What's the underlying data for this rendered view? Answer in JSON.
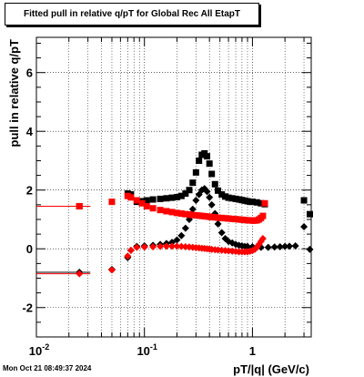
{
  "chart_data": {
    "type": "scatter",
    "title": "Fitted pull in relative q/pT for Global Rec All EtapT",
    "xlabel": "pT/|q| (GeV/c)",
    "ylabel": "pull in relative q/pT",
    "xscale": "log",
    "xlim": [
      0.01,
      3.5
    ],
    "ylim": [
      -3.0,
      7.2
    ],
    "x_ticks": [
      {
        "value": 0.01,
        "base": "10",
        "exp": "-2"
      },
      {
        "value": 0.1,
        "base": "10",
        "exp": "-1"
      },
      {
        "value": 1,
        "base": "1",
        "exp": ""
      }
    ],
    "y_ticks": [
      -2,
      0,
      2,
      4,
      6
    ],
    "grid": true,
    "series": [
      {
        "color": "#000000",
        "marker": "square",
        "points": [
          [
            0.025,
            1.45
          ],
          [
            0.07,
            1.88
          ],
          [
            0.075,
            1.85
          ],
          [
            0.085,
            1.6
          ],
          [
            0.095,
            1.62
          ],
          [
            0.105,
            1.65
          ],
          [
            0.12,
            1.68
          ],
          [
            0.14,
            1.7
          ],
          [
            0.16,
            1.72
          ],
          [
            0.18,
            1.74
          ],
          [
            0.2,
            1.76
          ],
          [
            0.22,
            1.8
          ],
          [
            0.24,
            1.88
          ],
          [
            0.26,
            2.0
          ],
          [
            0.28,
            2.25
          ],
          [
            0.3,
            2.6
          ],
          [
            0.32,
            3.0
          ],
          [
            0.34,
            3.2
          ],
          [
            0.36,
            3.25
          ],
          [
            0.38,
            3.15
          ],
          [
            0.4,
            2.9
          ],
          [
            0.42,
            2.55
          ],
          [
            0.45,
            2.2
          ],
          [
            0.48,
            1.98
          ],
          [
            0.52,
            1.85
          ],
          [
            0.56,
            1.78
          ],
          [
            0.6,
            1.74
          ],
          [
            0.65,
            1.72
          ],
          [
            0.7,
            1.7
          ],
          [
            0.75,
            1.68
          ],
          [
            0.8,
            1.66
          ],
          [
            0.85,
            1.64
          ],
          [
            0.9,
            1.62
          ],
          [
            0.95,
            1.6
          ],
          [
            1.0,
            1.6
          ],
          [
            1.1,
            1.58
          ],
          [
            1.2,
            1.55
          ],
          [
            1.3,
            1.52
          ],
          [
            3.0,
            1.65
          ],
          [
            3.4,
            1.18
          ]
        ]
      },
      {
        "color": "#000000",
        "marker": "circle",
        "points": [
          [
            0.025,
            -0.8
          ],
          [
            0.05,
            -0.7
          ],
          [
            0.07,
            -0.3
          ],
          [
            0.075,
            -0.05
          ],
          [
            0.085,
            0.08
          ],
          [
            0.1,
            0.1
          ],
          [
            0.12,
            0.12
          ],
          [
            0.14,
            0.15
          ],
          [
            0.16,
            0.18
          ],
          [
            0.18,
            0.22
          ],
          [
            0.2,
            0.3
          ],
          [
            0.22,
            0.45
          ],
          [
            0.24,
            0.7
          ],
          [
            0.26,
            1.0
          ],
          [
            0.28,
            1.35
          ],
          [
            0.3,
            1.65
          ],
          [
            0.32,
            1.85
          ],
          [
            0.34,
            2.0
          ],
          [
            0.36,
            2.05
          ],
          [
            0.38,
            1.95
          ],
          [
            0.4,
            1.75
          ],
          [
            0.42,
            1.5
          ],
          [
            0.45,
            1.2
          ],
          [
            0.48,
            0.85
          ],
          [
            0.52,
            0.55
          ],
          [
            0.56,
            0.35
          ],
          [
            0.6,
            0.25
          ],
          [
            0.65,
            0.2
          ],
          [
            0.7,
            0.15
          ],
          [
            0.75,
            0.12
          ],
          [
            0.8,
            0.1
          ],
          [
            0.85,
            0.08
          ],
          [
            0.9,
            0.08
          ],
          [
            1.0,
            0.07
          ],
          [
            1.1,
            0.06
          ],
          [
            1.2,
            0.05
          ],
          [
            1.4,
            0.05
          ],
          [
            1.6,
            0.06
          ],
          [
            1.8,
            0.07
          ],
          [
            2.0,
            0.08
          ],
          [
            2.2,
            0.09
          ],
          [
            2.5,
            0.1
          ],
          [
            3.0,
            0.75
          ],
          [
            3.4,
            -0.02
          ]
        ]
      },
      {
        "color": "#ff0000",
        "marker": "square",
        "points": [
          [
            0.025,
            1.45
          ],
          [
            0.05,
            1.6
          ],
          [
            0.07,
            1.8
          ],
          [
            0.075,
            1.75
          ],
          [
            0.085,
            1.65
          ],
          [
            0.095,
            1.55
          ],
          [
            0.105,
            1.45
          ],
          [
            0.12,
            1.38
          ],
          [
            0.14,
            1.32
          ],
          [
            0.16,
            1.28
          ],
          [
            0.18,
            1.25
          ],
          [
            0.2,
            1.22
          ],
          [
            0.22,
            1.2
          ],
          [
            0.24,
            1.18
          ],
          [
            0.26,
            1.17
          ],
          [
            0.28,
            1.15
          ],
          [
            0.3,
            1.14
          ],
          [
            0.32,
            1.13
          ],
          [
            0.34,
            1.12
          ],
          [
            0.36,
            1.11
          ],
          [
            0.38,
            1.1
          ],
          [
            0.4,
            1.09
          ],
          [
            0.42,
            1.08
          ],
          [
            0.45,
            1.07
          ],
          [
            0.48,
            1.06
          ],
          [
            0.52,
            1.05
          ],
          [
            0.56,
            1.04
          ],
          [
            0.6,
            1.03
          ],
          [
            0.65,
            1.02
          ],
          [
            0.7,
            1.01
          ],
          [
            0.75,
            1.0
          ],
          [
            0.8,
            0.99
          ],
          [
            0.85,
            0.98
          ],
          [
            0.9,
            0.97
          ],
          [
            0.95,
            0.97
          ],
          [
            1.0,
            0.96
          ],
          [
            1.05,
            0.96
          ],
          [
            1.1,
            0.97
          ],
          [
            1.15,
            1.0
          ],
          [
            1.2,
            1.05
          ],
          [
            1.25,
            1.12
          ],
          [
            1.3,
            1.55
          ]
        ]
      },
      {
        "color": "#ff0000",
        "marker": "circle",
        "points": [
          [
            0.025,
            -0.85
          ],
          [
            0.05,
            -0.72
          ],
          [
            0.07,
            -0.25
          ],
          [
            0.075,
            -0.05
          ],
          [
            0.085,
            0.05
          ],
          [
            0.1,
            0.06
          ],
          [
            0.12,
            0.07
          ],
          [
            0.14,
            0.08
          ],
          [
            0.16,
            0.09
          ],
          [
            0.18,
            0.09
          ],
          [
            0.2,
            0.09
          ],
          [
            0.22,
            0.08
          ],
          [
            0.24,
            0.07
          ],
          [
            0.26,
            0.06
          ],
          [
            0.28,
            0.05
          ],
          [
            0.3,
            0.04
          ],
          [
            0.32,
            0.03
          ],
          [
            0.34,
            0.02
          ],
          [
            0.36,
            0.01
          ],
          [
            0.38,
            0.0
          ],
          [
            0.4,
            -0.01
          ],
          [
            0.42,
            -0.02
          ],
          [
            0.45,
            -0.03
          ],
          [
            0.48,
            -0.04
          ],
          [
            0.52,
            -0.05
          ],
          [
            0.56,
            -0.06
          ],
          [
            0.6,
            -0.07
          ],
          [
            0.65,
            -0.08
          ],
          [
            0.7,
            -0.09
          ],
          [
            0.75,
            -0.1
          ],
          [
            0.8,
            -0.1
          ],
          [
            0.85,
            -0.1
          ],
          [
            0.9,
            -0.1
          ],
          [
            0.95,
            -0.08
          ],
          [
            1.0,
            -0.06
          ],
          [
            1.05,
            -0.02
          ],
          [
            1.1,
            0.05
          ],
          [
            1.15,
            0.15
          ],
          [
            1.2,
            0.25
          ],
          [
            1.25,
            0.35
          ]
        ]
      }
    ]
  },
  "timestamp": "Mon Oct 21 08:49:37 2024"
}
